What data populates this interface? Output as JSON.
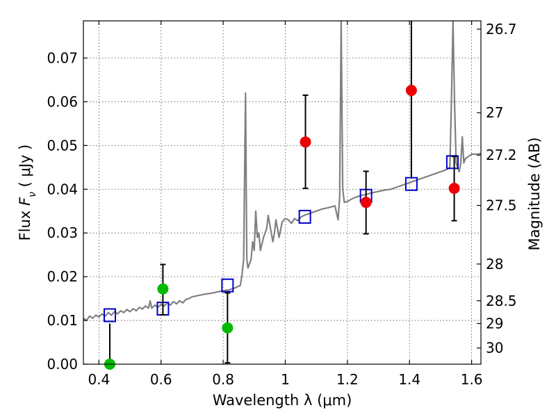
{
  "chart_data": {
    "type": "scatter",
    "title": "",
    "xlabel": "Wavelength  λ (μm)",
    "ylabel": "Flux  F_ν  ( μJy )",
    "ylabel_parts": {
      "prefix": "Flux  ",
      "symbol": "F",
      "subscript": "ν",
      "unit": "  ( μJy )"
    },
    "y2label": "Magnitude (AB)",
    "xlim": [
      0.35,
      1.63
    ],
    "ylim": [
      0.0,
      0.0785
    ],
    "grid": true,
    "x_ticks": [
      0.4,
      0.6,
      0.8,
      1.0,
      1.2,
      1.4,
      1.6
    ],
    "x_tick_labels": [
      "0.4",
      "0.6",
      "0.8",
      "1",
      "1.2",
      "1.4",
      "1.6"
    ],
    "y_ticks": [
      0.0,
      0.01,
      0.02,
      0.03,
      0.04,
      0.05,
      0.06,
      0.07
    ],
    "y_tick_labels": [
      "0.00",
      "0.01",
      "0.02",
      "0.03",
      "0.04",
      "0.05",
      "0.06",
      "0.07"
    ],
    "mag_ticks": [
      {
        "label": "26.7",
        "flux": 0.0766
      },
      {
        "label": "27",
        "flux": 0.0575
      },
      {
        "label": "27.2",
        "flux": 0.0478
      },
      {
        "label": "27.5",
        "flux": 0.0363
      },
      {
        "label": "28",
        "flux": 0.0229
      },
      {
        "label": "28.5",
        "flux": 0.0145
      },
      {
        "label": "29",
        "flux": 0.0093
      },
      {
        "label": "30",
        "flux": 0.0037
      }
    ],
    "colors": {
      "spectrum": "#808080",
      "model": "#0000cc",
      "green": "#00bb00",
      "red": "#ee0000"
    },
    "spectrum": {
      "name": "",
      "points": [
        [
          0.35,
          0.0105
        ],
        [
          0.36,
          0.01
        ],
        [
          0.37,
          0.011
        ],
        [
          0.38,
          0.0105
        ],
        [
          0.39,
          0.0112
        ],
        [
          0.4,
          0.0108
        ],
        [
          0.41,
          0.0115
        ],
        [
          0.42,
          0.011
        ],
        [
          0.43,
          0.0118
        ],
        [
          0.44,
          0.0112
        ],
        [
          0.45,
          0.012
        ],
        [
          0.46,
          0.0115
        ],
        [
          0.47,
          0.0122
        ],
        [
          0.48,
          0.0118
        ],
        [
          0.49,
          0.0125
        ],
        [
          0.5,
          0.012
        ],
        [
          0.51,
          0.0127
        ],
        [
          0.52,
          0.0122
        ],
        [
          0.53,
          0.013
        ],
        [
          0.54,
          0.0126
        ],
        [
          0.55,
          0.0133
        ],
        [
          0.56,
          0.0128
        ],
        [
          0.565,
          0.0145
        ],
        [
          0.57,
          0.0128
        ],
        [
          0.58,
          0.0135
        ],
        [
          0.59,
          0.013
        ],
        [
          0.6,
          0.0137
        ],
        [
          0.61,
          0.0133
        ],
        [
          0.62,
          0.014
        ],
        [
          0.63,
          0.0135
        ],
        [
          0.64,
          0.0143
        ],
        [
          0.65,
          0.0138
        ],
        [
          0.66,
          0.0145
        ],
        [
          0.67,
          0.014
        ],
        [
          0.68,
          0.0148
        ],
        [
          0.69,
          0.015
        ],
        [
          0.7,
          0.0154
        ],
        [
          0.72,
          0.0157
        ],
        [
          0.74,
          0.016
        ],
        [
          0.76,
          0.0162
        ],
        [
          0.78,
          0.0165
        ],
        [
          0.8,
          0.0168
        ],
        [
          0.82,
          0.017
        ],
        [
          0.84,
          0.0175
        ],
        [
          0.855,
          0.018
        ],
        [
          0.86,
          0.02
        ],
        [
          0.866,
          0.024
        ],
        [
          0.872,
          0.062
        ],
        [
          0.876,
          0.024
        ],
        [
          0.88,
          0.022
        ],
        [
          0.89,
          0.024
        ],
        [
          0.895,
          0.028
        ],
        [
          0.9,
          0.026
        ],
        [
          0.905,
          0.035
        ],
        [
          0.91,
          0.029
        ],
        [
          0.915,
          0.03
        ],
        [
          0.92,
          0.026
        ],
        [
          0.93,
          0.029
        ],
        [
          0.94,
          0.031
        ],
        [
          0.945,
          0.034
        ],
        [
          0.95,
          0.032
        ],
        [
          0.96,
          0.028
        ],
        [
          0.965,
          0.03
        ],
        [
          0.97,
          0.033
        ],
        [
          0.98,
          0.029
        ],
        [
          0.99,
          0.0325
        ],
        [
          1.0,
          0.0333
        ],
        [
          1.01,
          0.033
        ],
        [
          1.02,
          0.0322
        ],
        [
          1.03,
          0.0333
        ],
        [
          1.04,
          0.0328
        ],
        [
          1.05,
          0.0336
        ],
        [
          1.06,
          0.034
        ],
        [
          1.08,
          0.0345
        ],
        [
          1.1,
          0.035
        ],
        [
          1.12,
          0.0355
        ],
        [
          1.14,
          0.0358
        ],
        [
          1.16,
          0.0362
        ],
        [
          1.17,
          0.033
        ],
        [
          1.175,
          0.038
        ],
        [
          1.18,
          0.0785
        ],
        [
          1.185,
          0.04
        ],
        [
          1.19,
          0.037
        ],
        [
          1.2,
          0.0372
        ],
        [
          1.22,
          0.038
        ],
        [
          1.24,
          0.0385
        ],
        [
          1.26,
          0.0388
        ],
        [
          1.28,
          0.0392
        ],
        [
          1.3,
          0.0395
        ],
        [
          1.32,
          0.0398
        ],
        [
          1.34,
          0.04
        ],
        [
          1.36,
          0.0405
        ],
        [
          1.38,
          0.041
        ],
        [
          1.4,
          0.0415
        ],
        [
          1.42,
          0.042
        ],
        [
          1.44,
          0.0425
        ],
        [
          1.46,
          0.043
        ],
        [
          1.48,
          0.0435
        ],
        [
          1.5,
          0.044
        ],
        [
          1.52,
          0.0445
        ],
        [
          1.53,
          0.045
        ],
        [
          1.535,
          0.06
        ],
        [
          1.54,
          0.0785
        ],
        [
          1.545,
          0.06
        ],
        [
          1.55,
          0.046
        ],
        [
          1.56,
          0.044
        ],
        [
          1.565,
          0.046
        ],
        [
          1.57,
          0.052
        ],
        [
          1.575,
          0.046
        ],
        [
          1.58,
          0.047
        ],
        [
          1.59,
          0.0475
        ],
        [
          1.6,
          0.048
        ],
        [
          1.61,
          0.048
        ],
        [
          1.62,
          0.048
        ],
        [
          1.63,
          0.0482
        ]
      ]
    },
    "model_points": [
      {
        "x": 0.435,
        "y": 0.0112
      },
      {
        "x": 0.606,
        "y": 0.0127
      },
      {
        "x": 0.814,
        "y": 0.018
      },
      {
        "x": 1.063,
        "y": 0.0337
      },
      {
        "x": 1.26,
        "y": 0.0385
      },
      {
        "x": 1.406,
        "y": 0.0412
      },
      {
        "x": 1.538,
        "y": 0.0462
      }
    ],
    "observed_points": [
      {
        "x": 0.435,
        "y": 0.0,
        "ylow": 0.0,
        "yhigh": 0.0093,
        "color": "green",
        "cap": false
      },
      {
        "x": 0.606,
        "y": 0.0172,
        "ylow": 0.0113,
        "yhigh": 0.0228,
        "color": "green",
        "cap": true
      },
      {
        "x": 0.814,
        "y": 0.0083,
        "ylow": 0.0003,
        "yhigh": 0.0163,
        "color": "green",
        "cap": true
      },
      {
        "x": 1.065,
        "y": 0.0508,
        "ylow": 0.0402,
        "yhigh": 0.0615,
        "color": "red",
        "cap": true
      },
      {
        "x": 1.26,
        "y": 0.037,
        "ylow": 0.0298,
        "yhigh": 0.0441,
        "color": "red",
        "cap": true
      },
      {
        "x": 1.406,
        "y": 0.0626,
        "ylow": 0.0425,
        "yhigh": 0.0785,
        "color": "red",
        "cap": false
      },
      {
        "x": 1.544,
        "y": 0.0402,
        "ylow": 0.0328,
        "yhigh": 0.0475,
        "color": "red",
        "cap": true
      }
    ]
  }
}
